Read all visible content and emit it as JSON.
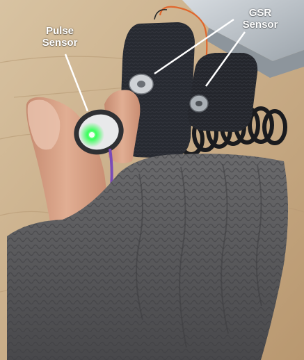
{
  "labels": {
    "pulse": {
      "line1": "Pulse",
      "line2": "Sensor"
    },
    "gsr": {
      "line1": "GSR",
      "line2": "Sensor"
    }
  },
  "colors": {
    "background_wood": "#c9b08e",
    "laptop": "#bfc6cc",
    "sleeve": "#5a5a5c",
    "glove": "#26282e",
    "skin": "#d9a48a",
    "sensor_led": "#39ff5a",
    "wire_orange": "#e0662c",
    "wire_purple": "#7a4ab8",
    "label_text": "#ffffff"
  }
}
